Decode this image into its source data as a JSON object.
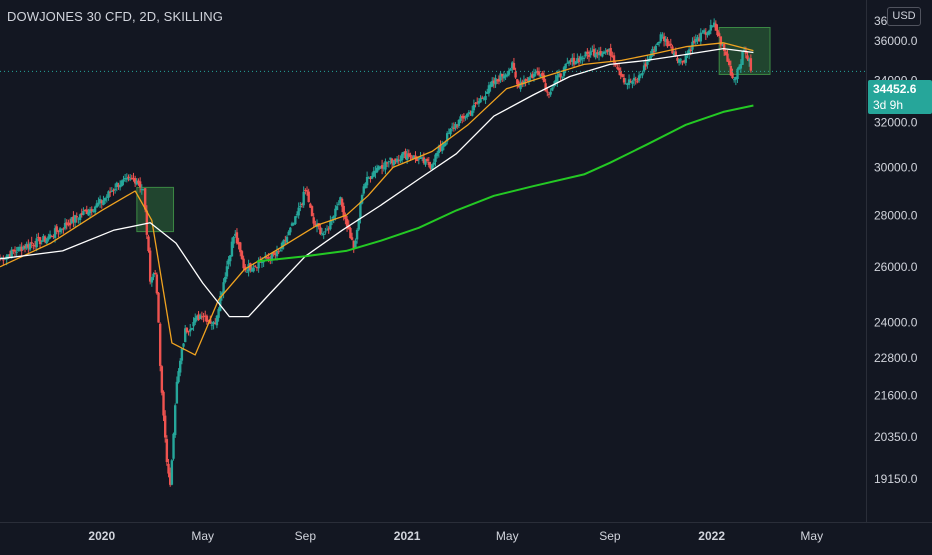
{
  "header": {
    "title": "DOWJONES 30 CFD, 2D, SKILLING",
    "currency": "USD"
  },
  "last_price": {
    "value": "34452.6",
    "countdown": "3d 9h"
  },
  "colors": {
    "background": "#131722",
    "up_candle": "#26a69a",
    "down_candle": "#ef5350",
    "ma_fast": "#f0a320",
    "ma_mid": "#ffffff",
    "ma_slow": "#24c924",
    "highlight_box": "#2e6b3a",
    "text": "#d1d4dc"
  },
  "chart_data": {
    "type": "candlestick",
    "title": "DOWJONES 30 CFD, 2D, SKILLING",
    "scale": "log",
    "ylim": [
      18000,
      37800
    ],
    "y_ticks": [
      36000,
      34000,
      32000,
      30000,
      28000,
      26000,
      24000,
      22800,
      21600,
      20350,
      19150
    ],
    "y_tick_labels": [
      "36000.0",
      "34000.0",
      "32000.0",
      "30000.0",
      "28000.0",
      "26000.0",
      "24000.0",
      "22800.0",
      "21600.0",
      "20350.0",
      "19150.0"
    ],
    "x_range": [
      "2019-09-01",
      "2022-07-05"
    ],
    "x_ticks": [
      {
        "date": "2020-01-01",
        "label": "2020",
        "major": true
      },
      {
        "date": "2020-05-01",
        "label": "May",
        "major": false
      },
      {
        "date": "2020-09-01",
        "label": "Sep",
        "major": false
      },
      {
        "date": "2021-01-01",
        "label": "2021",
        "major": true
      },
      {
        "date": "2021-05-01",
        "label": "May",
        "major": false
      },
      {
        "date": "2021-09-01",
        "label": "Sep",
        "major": false
      },
      {
        "date": "2022-01-01",
        "label": "2022",
        "major": true
      },
      {
        "date": "2022-05-01",
        "label": "May",
        "major": false
      }
    ],
    "price_path": [
      [
        "2019-09-01",
        26300
      ],
      [
        "2019-10-01",
        26800
      ],
      [
        "2019-10-25",
        27050
      ],
      [
        "2019-12-01",
        27900
      ],
      [
        "2020-01-01",
        28550
      ],
      [
        "2020-01-20",
        29300
      ],
      [
        "2020-02-12",
        29500
      ],
      [
        "2020-02-20",
        29000
      ],
      [
        "2020-02-28",
        25600
      ],
      [
        "2020-03-06",
        25800
      ],
      [
        "2020-03-12",
        21900
      ],
      [
        "2020-03-20",
        19400
      ],
      [
        "2020-03-23",
        18900
      ],
      [
        "2020-03-30",
        21800
      ],
      [
        "2020-04-10",
        23700
      ],
      [
        "2020-04-30",
        24300
      ],
      [
        "2020-05-15",
        23900
      ],
      [
        "2020-06-08",
        27300
      ],
      [
        "2020-06-20",
        25900
      ],
      [
        "2020-07-10",
        26200
      ],
      [
        "2020-07-31",
        26500
      ],
      [
        "2020-08-20",
        27800
      ],
      [
        "2020-09-02",
        29100
      ],
      [
        "2020-09-10",
        27700
      ],
      [
        "2020-09-25",
        27200
      ],
      [
        "2020-10-12",
        28700
      ],
      [
        "2020-10-30",
        26600
      ],
      [
        "2020-11-09",
        29200
      ],
      [
        "2020-11-25",
        30000
      ],
      [
        "2020-12-31",
        30600
      ],
      [
        "2021-01-29",
        30100
      ],
      [
        "2021-02-25",
        31800
      ],
      [
        "2021-03-20",
        32600
      ],
      [
        "2021-04-15",
        33900
      ],
      [
        "2021-05-07",
        34700
      ],
      [
        "2021-05-13",
        33800
      ],
      [
        "2021-06-10",
        34500
      ],
      [
        "2021-06-18",
        33400
      ],
      [
        "2021-07-15",
        34900
      ],
      [
        "2021-08-16",
        35500
      ],
      [
        "2021-09-02",
        35400
      ],
      [
        "2021-09-20",
        33900
      ],
      [
        "2021-10-04",
        34000
      ],
      [
        "2021-11-02",
        36300
      ],
      [
        "2021-11-26",
        34900
      ],
      [
        "2021-12-10",
        35900
      ],
      [
        "2022-01-04",
        36800
      ],
      [
        "2022-01-20",
        35000
      ],
      [
        "2022-01-27",
        34000
      ],
      [
        "2022-02-10",
        35600
      ],
      [
        "2022-02-18",
        34450
      ]
    ],
    "series": [
      {
        "name": "",
        "color": "#f0a320",
        "points": [
          [
            "2019-09-01",
            26000
          ],
          [
            "2019-11-01",
            26900
          ],
          [
            "2020-01-01",
            28200
          ],
          [
            "2020-02-10",
            29000
          ],
          [
            "2020-03-01",
            27800
          ],
          [
            "2020-03-25",
            23300
          ],
          [
            "2020-04-22",
            22900
          ],
          [
            "2020-05-20",
            24800
          ],
          [
            "2020-06-20",
            25900
          ],
          [
            "2020-08-01",
            26700
          ],
          [
            "2020-09-15",
            27600
          ],
          [
            "2020-10-20",
            28000
          ],
          [
            "2020-11-15",
            28800
          ],
          [
            "2020-12-15",
            30000
          ],
          [
            "2021-01-31",
            30700
          ],
          [
            "2021-03-15",
            31900
          ],
          [
            "2021-04-30",
            33600
          ],
          [
            "2021-06-15",
            34200
          ],
          [
            "2021-08-01",
            34800
          ],
          [
            "2021-09-15",
            35000
          ],
          [
            "2021-10-20",
            35300
          ],
          [
            "2021-12-01",
            35700
          ],
          [
            "2022-01-15",
            35900
          ],
          [
            "2022-02-20",
            35500
          ]
        ]
      },
      {
        "name": "",
        "color": "#ffffff",
        "points": [
          [
            "2019-09-01",
            26300
          ],
          [
            "2019-11-15",
            26600
          ],
          [
            "2020-01-15",
            27400
          ],
          [
            "2020-02-28",
            27700
          ],
          [
            "2020-03-30",
            26900
          ],
          [
            "2020-05-01",
            25400
          ],
          [
            "2020-06-02",
            24200
          ],
          [
            "2020-06-25",
            24200
          ],
          [
            "2020-07-20",
            25000
          ],
          [
            "2020-09-01",
            26400
          ],
          [
            "2020-10-15",
            27400
          ],
          [
            "2020-11-30",
            28400
          ],
          [
            "2021-01-15",
            29500
          ],
          [
            "2021-03-01",
            30600
          ],
          [
            "2021-04-15",
            32300
          ],
          [
            "2021-06-01",
            33300
          ],
          [
            "2021-07-15",
            34200
          ],
          [
            "2021-09-01",
            34800
          ],
          [
            "2021-10-15",
            35000
          ],
          [
            "2021-12-01",
            35300
          ],
          [
            "2022-01-15",
            35600
          ],
          [
            "2022-02-20",
            35400
          ]
        ]
      },
      {
        "name": "",
        "color": "#24c924",
        "points": [
          [
            "2020-07-05",
            26200
          ],
          [
            "2020-09-01",
            26400
          ],
          [
            "2020-10-20",
            26600
          ],
          [
            "2020-12-01",
            27000
          ],
          [
            "2021-01-15",
            27500
          ],
          [
            "2021-03-01",
            28200
          ],
          [
            "2021-04-15",
            28800
          ],
          [
            "2021-06-01",
            29200
          ],
          [
            "2021-08-01",
            29700
          ],
          [
            "2021-09-01",
            30200
          ],
          [
            "2021-10-15",
            31000
          ],
          [
            "2021-12-01",
            31900
          ],
          [
            "2022-01-15",
            32500
          ],
          [
            "2022-02-20",
            32800
          ]
        ]
      }
    ],
    "highlight_boxes": [
      {
        "from": "2020-02-12",
        "to": "2020-03-27",
        "low": 27350,
        "high": 29150
      },
      {
        "from": "2022-01-10",
        "to": "2022-03-12",
        "low": 34300,
        "high": 36700
      }
    ],
    "last_price": 34452.6
  }
}
